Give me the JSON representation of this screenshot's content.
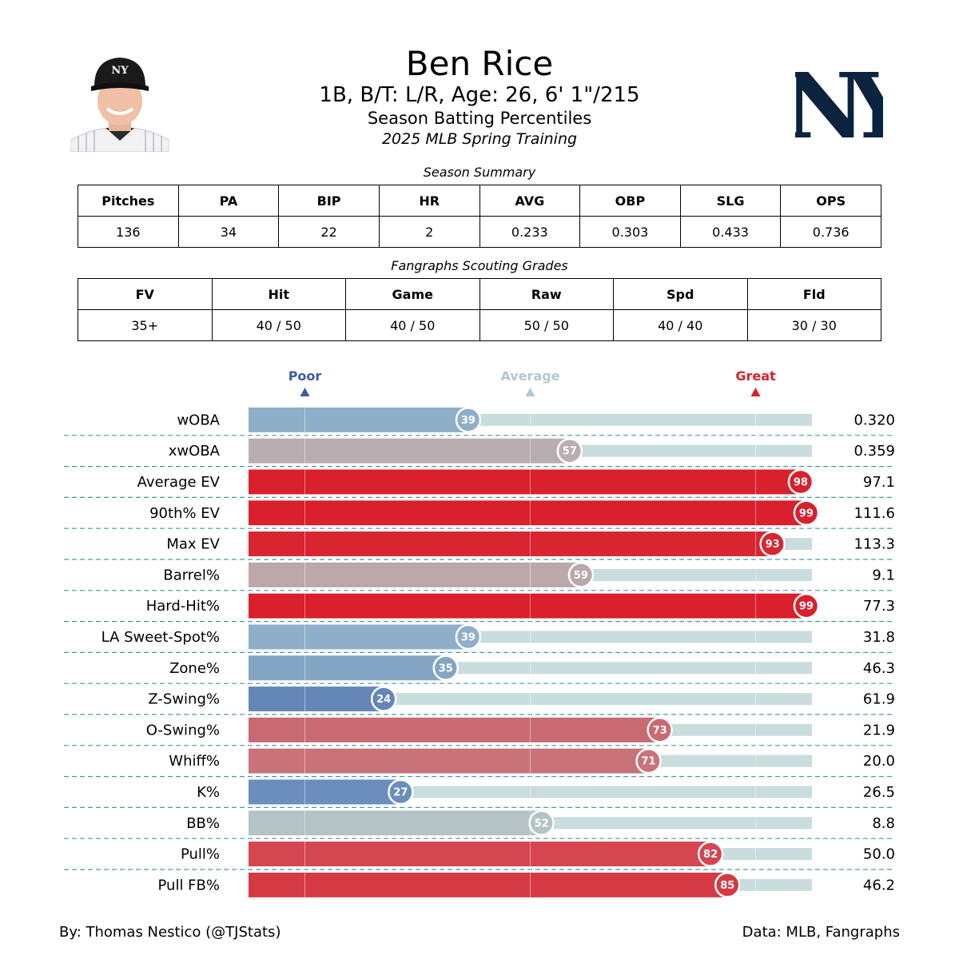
{
  "header": {
    "name": "Ben Rice",
    "bio": "1B, B/T: L/R, Age: 26, 6' 1\"/215",
    "subtitle": "Season Batting Percentiles",
    "event": "2025 MLB Spring Training"
  },
  "season_summary": {
    "title": "Season Summary",
    "headers": [
      "Pitches",
      "PA",
      "BIP",
      "HR",
      "AVG",
      "OBP",
      "SLG",
      "OPS"
    ],
    "values": [
      "136",
      "34",
      "22",
      "2",
      "0.233",
      "0.303",
      "0.433",
      "0.736"
    ]
  },
  "scouting": {
    "title": "Fangraphs Scouting Grades",
    "headers": [
      "FV",
      "Hit",
      "Game",
      "Raw",
      "Spd",
      "Fld"
    ],
    "values": [
      "35+",
      "40 / 50",
      "40 / 50",
      "50 / 50",
      "40 / 40",
      "30 / 30"
    ]
  },
  "chart_data": {
    "type": "bar",
    "orientation": "horizontal",
    "xlim": [
      0,
      100
    ],
    "markers": [
      {
        "label": "Poor",
        "value": 10,
        "color": "#3b5ba5"
      },
      {
        "label": "Average",
        "value": 50,
        "color": "#b0c8d3"
      },
      {
        "label": "Great",
        "value": 90,
        "color": "#d9202c"
      }
    ],
    "rows": [
      {
        "metric": "wOBA",
        "percentile": 39,
        "value": "0.320",
        "color": "#8fafc8"
      },
      {
        "metric": "xwOBA",
        "percentile": 57,
        "value": "0.359",
        "color": "#b8aeb2"
      },
      {
        "metric": "Average EV",
        "percentile": 98,
        "value": "97.1",
        "color": "#d9202c"
      },
      {
        "metric": "90th% EV",
        "percentile": 99,
        "value": "111.6",
        "color": "#d9202c"
      },
      {
        "metric": "Max EV",
        "percentile": 93,
        "value": "113.3",
        "color": "#d92530"
      },
      {
        "metric": "Barrel%",
        "percentile": 59,
        "value": "9.1",
        "color": "#bca7ab"
      },
      {
        "metric": "Hard-Hit%",
        "percentile": 99,
        "value": "77.3",
        "color": "#d9202c"
      },
      {
        "metric": "LA Sweet-Spot%",
        "percentile": 39,
        "value": "31.8",
        "color": "#8fafc8"
      },
      {
        "metric": "Zone%",
        "percentile": 35,
        "value": "46.3",
        "color": "#83a5c3"
      },
      {
        "metric": "Z-Swing%",
        "percentile": 24,
        "value": "61.9",
        "color": "#6487b8"
      },
      {
        "metric": "O-Swing%",
        "percentile": 73,
        "value": "21.9",
        "color": "#c96a72"
      },
      {
        "metric": "Whiff%",
        "percentile": 71,
        "value": "20.0",
        "color": "#c8727a"
      },
      {
        "metric": "K%",
        "percentile": 27,
        "value": "26.5",
        "color": "#6b8ebd"
      },
      {
        "metric": "BB%",
        "percentile": 52,
        "value": "8.8",
        "color": "#b5c3c7"
      },
      {
        "metric": "Pull%",
        "percentile": 82,
        "value": "50.0",
        "color": "#d44650"
      },
      {
        "metric": "Pull FB%",
        "percentile": 85,
        "value": "46.2",
        "color": "#d53a44"
      }
    ],
    "track_color": "#c9dcde",
    "separator_color": "#4a9aa3"
  },
  "footer": {
    "left": "By: Thomas Nestico (@TJStats)",
    "right": "Data: MLB, Fangraphs"
  },
  "logo": {
    "text": "NY",
    "color": "#0c2340"
  },
  "headshot": {
    "cap_text": "NY",
    "cap_color": "#1a1a1a"
  }
}
